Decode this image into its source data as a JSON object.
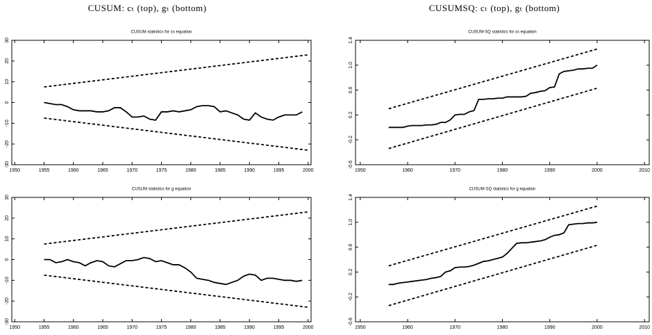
{
  "column_titles": [
    "CUSUM: cₜ (top), gₜ (bottom)",
    "CUSUMSQ: cₜ (top), gₜ (bottom)"
  ],
  "chart_data": [
    {
      "type": "line",
      "title": "CUSUM statistics for cs equation",
      "xlim": [
        1949.5,
        2000.5
      ],
      "ylim": [
        -30,
        30
      ],
      "xticks": [
        1950,
        1955,
        1960,
        1965,
        1970,
        1975,
        1980,
        1985,
        1990,
        1995,
        2000
      ],
      "yticks": [
        -30,
        -20,
        -10,
        0,
        10,
        20,
        30
      ],
      "series": [
        {
          "color": "#000000",
          "dash": false,
          "x": [
            1955,
            1956,
            1957,
            1958,
            1959,
            1960,
            1961,
            1962,
            1963,
            1964,
            1965,
            1966,
            1967,
            1968,
            1969,
            1970,
            1971,
            1972,
            1973,
            1974,
            1975,
            1976,
            1977,
            1978,
            1979,
            1980,
            1981,
            1982,
            1983,
            1984,
            1985,
            1986,
            1987,
            1988,
            1989,
            1990,
            1991,
            1992,
            1993,
            1994,
            1995,
            1996,
            1997,
            1998,
            1999
          ],
          "values": [
            0,
            -0.5,
            -1,
            -1,
            -2,
            -3.5,
            -4,
            -4,
            -4,
            -4.5,
            -4.5,
            -4,
            -2.5,
            -2.5,
            -4.5,
            -7,
            -7,
            -6.5,
            -8,
            -8.5,
            -4.5,
            -4.5,
            -4,
            -4.5,
            -4,
            -3.5,
            -2,
            -1.5,
            -1.5,
            -2,
            -4.5,
            -4,
            -5,
            -6,
            -8,
            -8.5,
            -5,
            -7,
            -8,
            -8.5,
            -7,
            -6,
            -6,
            -6,
            -4.5
          ]
        },
        {
          "color": "#000000",
          "dash": true,
          "x": [
            1955,
            2000
          ],
          "values": [
            7.5,
            23
          ]
        },
        {
          "color": "#000000",
          "dash": true,
          "x": [
            1955,
            2000
          ],
          "values": [
            -7.5,
            -23
          ]
        }
      ]
    },
    {
      "type": "line",
      "title": "CUSUM-SQ statistics for cs equation",
      "xlim": [
        1949,
        2011
      ],
      "ylim": [
        -0.6,
        1.4
      ],
      "xticks": [
        1950,
        1960,
        1970,
        1980,
        1990,
        2000,
        2010
      ],
      "yticks": [
        -0.6,
        -0.2,
        0.2,
        0.6,
        {
          "value": 1,
          "label": "1.0"
        },
        1.4
      ],
      "series": [
        {
          "color": "#000000",
          "dash": false,
          "x": [
            1956,
            1957,
            1958,
            1959,
            1960,
            1961,
            1962,
            1963,
            1964,
            1965,
            1966,
            1967,
            1968,
            1969,
            1970,
            1971,
            1972,
            1973,
            1974,
            1975,
            1976,
            1977,
            1978,
            1979,
            1980,
            1981,
            1982,
            1983,
            1984,
            1985,
            1986,
            1987,
            1988,
            1989,
            1990,
            1991,
            1992,
            1993,
            1994,
            1995,
            1996,
            1997,
            1998,
            1999,
            2000
          ],
          "values": [
            0,
            0,
            0,
            0,
            0.02,
            0.03,
            0.03,
            0.03,
            0.04,
            0.04,
            0.05,
            0.08,
            0.08,
            0.12,
            0.2,
            0.21,
            0.21,
            0.25,
            0.27,
            0.45,
            0.45,
            0.46,
            0.46,
            0.47,
            0.47,
            0.49,
            0.49,
            0.49,
            0.49,
            0.5,
            0.55,
            0.56,
            0.58,
            0.59,
            0.64,
            0.65,
            0.86,
            0.9,
            0.91,
            0.92,
            0.94,
            0.94,
            0.95,
            0.95,
            1
          ]
        },
        {
          "color": "#000000",
          "dash": true,
          "x": [
            1956,
            2000
          ],
          "values": [
            0.3,
            1.26
          ]
        },
        {
          "color": "#000000",
          "dash": true,
          "x": [
            1956,
            2000
          ],
          "values": [
            -0.34,
            0.63
          ]
        }
      ]
    },
    {
      "type": "line",
      "title": "CUSUM statistics for g equation",
      "xlim": [
        1949.5,
        2000.5
      ],
      "ylim": [
        -30,
        30
      ],
      "xticks": [
        1950,
        1955,
        1960,
        1965,
        1970,
        1975,
        1980,
        1985,
        1990,
        1995,
        2000
      ],
      "yticks": [
        -30,
        -20,
        -10,
        0,
        10,
        20,
        30
      ],
      "series": [
        {
          "color": "#000000",
          "dash": false,
          "x": [
            1955,
            1956,
            1957,
            1958,
            1959,
            1960,
            1961,
            1962,
            1963,
            1964,
            1965,
            1966,
            1967,
            1968,
            1969,
            1970,
            1971,
            1972,
            1973,
            1974,
            1975,
            1976,
            1977,
            1978,
            1979,
            1980,
            1981,
            1982,
            1983,
            1984,
            1985,
            1986,
            1987,
            1988,
            1989,
            1990,
            1991,
            1992,
            1993,
            1994,
            1995,
            1996,
            1997,
            1998,
            1999
          ],
          "values": [
            0,
            0,
            -1.5,
            -1,
            0,
            -1,
            -1.5,
            -3,
            -1.5,
            -0.5,
            -1,
            -3,
            -3.5,
            -2,
            -0.5,
            -0.5,
            0,
            1,
            0.5,
            -1,
            -0.5,
            -1.5,
            -2.5,
            -2.5,
            -4,
            -6,
            -9,
            -9.5,
            -10,
            -11,
            -11.5,
            -12,
            -11,
            -10,
            -8,
            -7,
            -7.5,
            -10,
            -9,
            -9,
            -9.5,
            -10,
            -10,
            -10.5,
            -10
          ]
        },
        {
          "color": "#000000",
          "dash": true,
          "x": [
            1955,
            2000
          ],
          "values": [
            7.5,
            23
          ]
        },
        {
          "color": "#000000",
          "dash": true,
          "x": [
            1955,
            2000
          ],
          "values": [
            -7.5,
            -23
          ]
        }
      ]
    },
    {
      "type": "line",
      "title": "CUSUM-SQ statistics for g equation",
      "xlim": [
        1949,
        2011
      ],
      "ylim": [
        -0.6,
        1.4
      ],
      "xticks": [
        1950,
        1960,
        1970,
        1980,
        1990,
        2000,
        2010
      ],
      "yticks": [
        -0.6,
        -0.2,
        0.2,
        0.6,
        {
          "value": 1,
          "label": "1.0"
        },
        1.4
      ],
      "series": [
        {
          "color": "#000000",
          "dash": false,
          "x": [
            1956,
            1957,
            1958,
            1959,
            1960,
            1961,
            1962,
            1963,
            1964,
            1965,
            1966,
            1967,
            1968,
            1969,
            1970,
            1971,
            1972,
            1973,
            1974,
            1975,
            1976,
            1977,
            1978,
            1979,
            1980,
            1981,
            1982,
            1983,
            1984,
            1985,
            1986,
            1987,
            1988,
            1989,
            1990,
            1991,
            1992,
            1993,
            1994,
            1995,
            1996,
            1997,
            1998,
            1999,
            2000
          ],
          "values": [
            0,
            0,
            0.02,
            0.03,
            0.04,
            0.05,
            0.06,
            0.07,
            0.08,
            0.1,
            0.11,
            0.13,
            0.2,
            0.22,
            0.27,
            0.28,
            0.28,
            0.29,
            0.31,
            0.34,
            0.37,
            0.38,
            0.4,
            0.42,
            0.44,
            0.5,
            0.58,
            0.66,
            0.67,
            0.67,
            0.68,
            0.69,
            0.7,
            0.72,
            0.76,
            0.79,
            0.8,
            0.83,
            0.96,
            0.97,
            0.98,
            0.98,
            0.99,
            0.99,
            1
          ]
        },
        {
          "color": "#000000",
          "dash": true,
          "x": [
            1956,
            2000
          ],
          "values": [
            0.3,
            1.26
          ]
        },
        {
          "color": "#000000",
          "dash": true,
          "x": [
            1956,
            2000
          ],
          "values": [
            -0.34,
            0.63
          ]
        }
      ]
    }
  ]
}
